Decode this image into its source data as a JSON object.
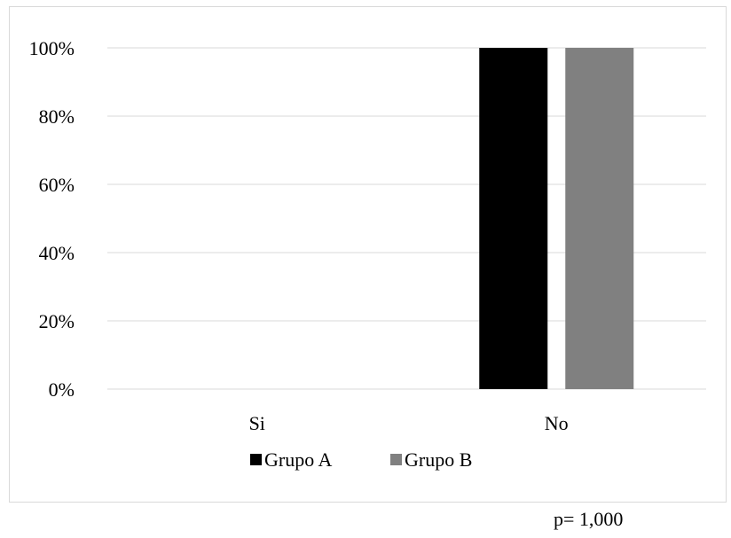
{
  "chart_data": {
    "type": "bar",
    "categories": [
      "Si",
      "No"
    ],
    "series": [
      {
        "name": "Grupo A",
        "values": [
          0,
          100
        ],
        "color": "#000000"
      },
      {
        "name": "Grupo B",
        "values": [
          0,
          100
        ],
        "color": "#808080"
      }
    ],
    "ylim": [
      0,
      100
    ],
    "yticks": [
      "0%",
      "20%",
      "40%",
      "60%",
      "80%",
      "100%"
    ],
    "grid": true,
    "gridline_color": "#d9d9d9",
    "legend_position": "bottom",
    "title": "",
    "xlabel": "",
    "ylabel": ""
  },
  "annotation": "p= 1,000"
}
